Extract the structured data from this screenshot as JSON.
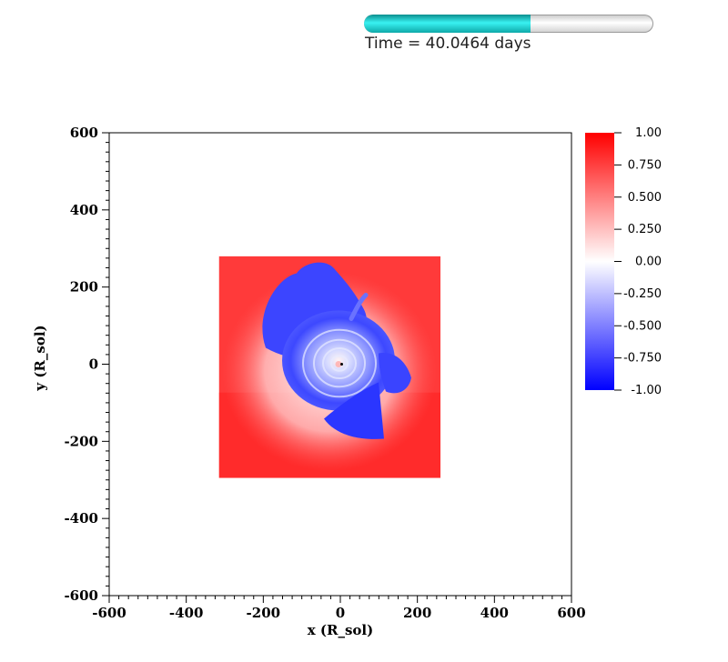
{
  "progress": {
    "fraction": 0.575,
    "color_fill": "#22d6d6"
  },
  "time_text": "Time = 40.0464 days",
  "chart_data": {
    "type": "heatmap",
    "title": "",
    "xlabel": "x (R_sol)",
    "ylabel": "y (R_sol)",
    "xlim": [
      -600,
      600
    ],
    "ylim": [
      -600,
      600
    ],
    "xticks": [
      -600,
      -400,
      -200,
      0,
      200,
      400,
      600
    ],
    "yticks": [
      -600,
      -400,
      -200,
      0,
      200,
      400,
      600
    ],
    "xtick_labels": [
      "-600",
      "-400",
      "-200",
      "0",
      "200",
      "400",
      "600"
    ],
    "ytick_labels": [
      "-600",
      "-400",
      "-200",
      "0",
      "200",
      "400",
      "600"
    ],
    "data_extent": {
      "x": [
        -315,
        260
      ],
      "y": [
        -295,
        280
      ]
    },
    "colorbar": {
      "range": [
        -1,
        1
      ],
      "ticks": [
        1,
        0.75,
        0.5,
        0.25,
        0,
        -0.25,
        -0.5,
        -0.75,
        -1
      ],
      "tick_labels": [
        "1.00",
        "0.750",
        "0.500",
        "0.250",
        "0.00",
        "-0.250",
        "-0.500",
        "-0.750",
        "-1.00"
      ],
      "colormap": [
        "#0000ff",
        "#ffffff",
        "#ff0000"
      ]
    },
    "grid": false
  }
}
